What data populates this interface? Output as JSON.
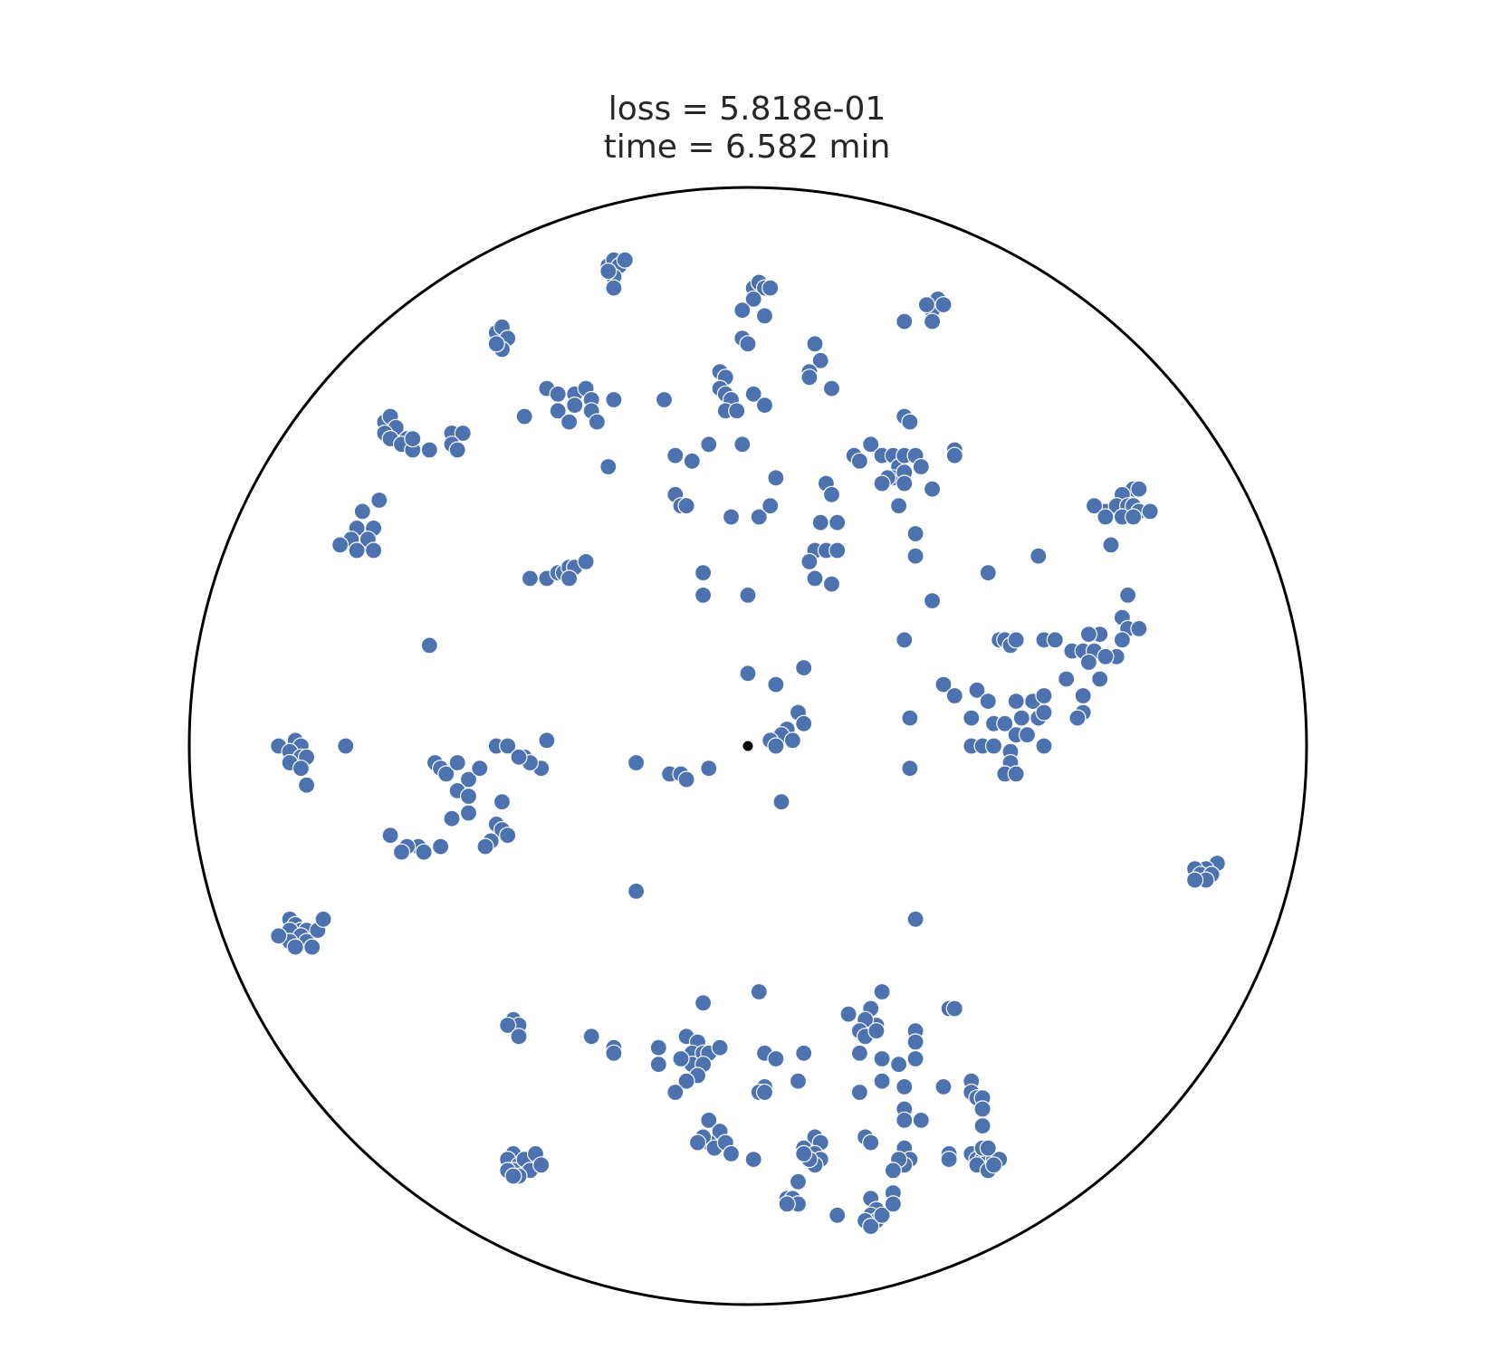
{
  "chart_data": {
    "type": "scatter",
    "title_lines": [
      "loss = 5.818e-01",
      "time = 6.582 min"
    ],
    "boundary": "unit-circle",
    "xlim": [
      -1,
      1
    ],
    "ylim": [
      -1,
      1
    ],
    "grid": false,
    "colors": {
      "points": "#4c72b0",
      "origin": "#000000",
      "boundary": "#000000",
      "point_edge": "#ffffff"
    },
    "origin_point": [
      0,
      0
    ],
    "points": [
      [
        -0.25,
        0.86
      ],
      [
        -0.24,
        0.87
      ],
      [
        -0.23,
        0.86
      ],
      [
        -0.24,
        0.84
      ],
      [
        -0.22,
        0.87
      ],
      [
        -0.25,
        0.85
      ],
      [
        -0.24,
        0.82
      ],
      [
        0.01,
        0.82
      ],
      [
        0.02,
        0.83
      ],
      [
        0.03,
        0.82
      ],
      [
        0.01,
        0.8
      ],
      [
        0.04,
        0.82
      ],
      [
        0.03,
        0.77
      ],
      [
        -0.01,
        0.78
      ],
      [
        -0.01,
        0.73
      ],
      [
        0.0,
        0.72
      ],
      [
        0.33,
        0.78
      ],
      [
        0.34,
        0.8
      ],
      [
        0.35,
        0.79
      ],
      [
        0.32,
        0.79
      ],
      [
        0.33,
        0.76
      ],
      [
        0.28,
        0.76
      ],
      [
        -0.45,
        0.74
      ],
      [
        -0.44,
        0.75
      ],
      [
        -0.43,
        0.73
      ],
      [
        -0.44,
        0.71
      ],
      [
        -0.45,
        0.72
      ],
      [
        0.12,
        0.72
      ],
      [
        0.13,
        0.69
      ],
      [
        0.11,
        0.67
      ],
      [
        0.11,
        0.66
      ],
      [
        0.15,
        0.64
      ],
      [
        -0.05,
        0.67
      ],
      [
        -0.04,
        0.66
      ],
      [
        -0.05,
        0.64
      ],
      [
        -0.04,
        0.63
      ],
      [
        -0.03,
        0.62
      ],
      [
        -0.04,
        0.6
      ],
      [
        -0.02,
        0.6
      ],
      [
        0.01,
        0.63
      ],
      [
        0.03,
        0.61
      ],
      [
        -0.15,
        0.62
      ],
      [
        -0.36,
        0.64
      ],
      [
        -0.34,
        0.63
      ],
      [
        -0.31,
        0.63
      ],
      [
        -0.29,
        0.64
      ],
      [
        -0.28,
        0.62
      ],
      [
        -0.31,
        0.61
      ],
      [
        -0.28,
        0.6
      ],
      [
        -0.34,
        0.6
      ],
      [
        -0.32,
        0.58
      ],
      [
        -0.27,
        0.58
      ],
      [
        -0.24,
        0.62
      ],
      [
        -0.4,
        0.59
      ],
      [
        -0.65,
        0.58
      ],
      [
        -0.64,
        0.59
      ],
      [
        -0.63,
        0.57
      ],
      [
        -0.65,
        0.56
      ],
      [
        -0.64,
        0.55
      ],
      [
        -0.61,
        0.55
      ],
      [
        -0.62,
        0.54
      ],
      [
        -0.6,
        0.53
      ],
      [
        -0.6,
        0.55
      ],
      [
        -0.57,
        0.53
      ],
      [
        -0.53,
        0.56
      ],
      [
        -0.51,
        0.56
      ],
      [
        -0.53,
        0.54
      ],
      [
        -0.52,
        0.53
      ],
      [
        0.28,
        0.59
      ],
      [
        0.29,
        0.58
      ],
      [
        0.22,
        0.54
      ],
      [
        0.24,
        0.52
      ],
      [
        0.26,
        0.52
      ],
      [
        0.27,
        0.5
      ],
      [
        0.28,
        0.52
      ],
      [
        0.3,
        0.52
      ],
      [
        0.31,
        0.5
      ],
      [
        0.26,
        0.48
      ],
      [
        0.28,
        0.49
      ],
      [
        0.25,
        0.48
      ],
      [
        0.24,
        0.47
      ],
      [
        0.28,
        0.47
      ],
      [
        0.33,
        0.46
      ],
      [
        0.19,
        0.52
      ],
      [
        0.2,
        0.51
      ],
      [
        0.37,
        0.53
      ],
      [
        0.37,
        0.52
      ],
      [
        0.14,
        0.47
      ],
      [
        0.15,
        0.45
      ],
      [
        0.27,
        0.43
      ],
      [
        0.3,
        0.38
      ],
      [
        -0.13,
        0.52
      ],
      [
        -0.1,
        0.51
      ],
      [
        -0.07,
        0.54
      ],
      [
        -0.01,
        0.54
      ],
      [
        0.05,
        0.48
      ],
      [
        -0.13,
        0.45
      ],
      [
        -0.12,
        0.43
      ],
      [
        -0.11,
        0.43
      ],
      [
        -0.03,
        0.41
      ],
      [
        0.02,
        0.41
      ],
      [
        0.04,
        0.43
      ],
      [
        -0.25,
        0.5
      ],
      [
        0.13,
        0.4
      ],
      [
        0.16,
        0.4
      ],
      [
        0.12,
        0.35
      ],
      [
        0.14,
        0.35
      ],
      [
        0.16,
        0.35
      ],
      [
        0.11,
        0.33
      ],
      [
        0.3,
        0.34
      ],
      [
        0.12,
        0.3
      ],
      [
        0.15,
        0.29
      ],
      [
        0.33,
        0.26
      ],
      [
        0.69,
        0.46
      ],
      [
        0.7,
        0.46
      ],
      [
        0.67,
        0.45
      ],
      [
        0.64,
        0.42
      ],
      [
        0.66,
        0.43
      ],
      [
        0.68,
        0.43
      ],
      [
        0.69,
        0.43
      ],
      [
        0.7,
        0.42
      ],
      [
        0.72,
        0.42
      ],
      [
        0.62,
        0.43
      ],
      [
        0.64,
        0.41
      ],
      [
        0.67,
        0.41
      ],
      [
        0.69,
        0.41
      ],
      [
        0.65,
        0.36
      ],
      [
        -0.69,
        0.42
      ],
      [
        -0.66,
        0.44
      ],
      [
        -0.7,
        0.39
      ],
      [
        -0.67,
        0.39
      ],
      [
        -0.71,
        0.37
      ],
      [
        -0.68,
        0.37
      ],
      [
        -0.73,
        0.36
      ],
      [
        -0.7,
        0.35
      ],
      [
        -0.67,
        0.35
      ],
      [
        -0.39,
        0.3
      ],
      [
        -0.36,
        0.3
      ],
      [
        -0.34,
        0.31
      ],
      [
        -0.33,
        0.31
      ],
      [
        -0.32,
        0.32
      ],
      [
        -0.31,
        0.32
      ],
      [
        -0.32,
        0.3
      ],
      [
        -0.29,
        0.33
      ],
      [
        -0.08,
        0.31
      ],
      [
        -0.08,
        0.27
      ],
      [
        0.0,
        0.27
      ],
      [
        0.43,
        0.31
      ],
      [
        0.52,
        0.34
      ],
      [
        0.68,
        0.27
      ],
      [
        0.67,
        0.23
      ],
      [
        0.68,
        0.21
      ],
      [
        0.63,
        0.2
      ],
      [
        0.61,
        0.2
      ],
      [
        0.58,
        0.17
      ],
      [
        0.6,
        0.17
      ],
      [
        0.62,
        0.17
      ],
      [
        0.66,
        0.16
      ],
      [
        0.67,
        0.19
      ],
      [
        0.7,
        0.21
      ],
      [
        0.61,
        0.15
      ],
      [
        0.64,
        0.16
      ],
      [
        0.57,
        0.12
      ],
      [
        0.6,
        0.09
      ],
      [
        0.63,
        0.12
      ],
      [
        0.6,
        0.06
      ],
      [
        0.59,
        0.05
      ],
      [
        0.45,
        0.19
      ],
      [
        0.46,
        0.19
      ],
      [
        0.47,
        0.18
      ],
      [
        0.48,
        0.19
      ],
      [
        0.53,
        0.19
      ],
      [
        0.55,
        0.19
      ],
      [
        0.28,
        0.19
      ],
      [
        -0.57,
        0.18
      ],
      [
        0.35,
        0.11
      ],
      [
        0.37,
        0.09
      ],
      [
        0.41,
        0.1
      ],
      [
        0.43,
        0.08
      ],
      [
        0.48,
        0.08
      ],
      [
        0.51,
        0.08
      ],
      [
        0.52,
        0.05
      ],
      [
        0.53,
        0.06
      ],
      [
        0.49,
        0.05
      ],
      [
        0.4,
        0.05
      ],
      [
        0.44,
        0.04
      ],
      [
        0.46,
        0.04
      ],
      [
        0.48,
        0.02
      ],
      [
        0.5,
        0.02
      ],
      [
        0.4,
        0.0
      ],
      [
        0.42,
        0.0
      ],
      [
        0.44,
        0.0
      ],
      [
        0.47,
        -0.01
      ],
      [
        0.47,
        -0.03
      ],
      [
        0.46,
        -0.05
      ],
      [
        0.48,
        -0.05
      ],
      [
        0.53,
        0.09
      ],
      [
        0.53,
        0.0
      ],
      [
        0.0,
        0.13
      ],
      [
        0.05,
        0.11
      ],
      [
        0.1,
        0.14
      ],
      [
        0.29,
        0.05
      ],
      [
        0.29,
        -0.04
      ],
      [
        0.09,
        0.06
      ],
      [
        0.1,
        0.04
      ],
      [
        0.07,
        0.03
      ],
      [
        0.06,
        0.02
      ],
      [
        0.08,
        0.01
      ],
      [
        0.04,
        0.01
      ],
      [
        0.05,
        0.0
      ],
      [
        -0.36,
        0.01
      ],
      [
        -0.45,
        0.0
      ],
      [
        -0.43,
        0.0
      ],
      [
        -0.4,
        -0.02
      ],
      [
        -0.37,
        -0.04
      ],
      [
        -0.39,
        -0.03
      ],
      [
        -0.41,
        -0.02
      ],
      [
        -0.84,
        0.0
      ],
      [
        -0.81,
        0.01
      ],
      [
        -0.8,
        0.0
      ],
      [
        -0.82,
        -0.01
      ],
      [
        -0.8,
        -0.02
      ],
      [
        -0.82,
        -0.03
      ],
      [
        -0.79,
        -0.02
      ],
      [
        -0.8,
        -0.04
      ],
      [
        -0.79,
        -0.07
      ],
      [
        -0.72,
        0.0
      ],
      [
        -0.2,
        -0.03
      ],
      [
        -0.14,
        -0.05
      ],
      [
        -0.12,
        -0.05
      ],
      [
        -0.11,
        -0.06
      ],
      [
        -0.07,
        -0.04
      ],
      [
        0.06,
        -0.1
      ],
      [
        -0.56,
        -0.03
      ],
      [
        -0.55,
        -0.04
      ],
      [
        -0.54,
        -0.05
      ],
      [
        -0.52,
        -0.03
      ],
      [
        -0.5,
        -0.06
      ],
      [
        -0.48,
        -0.04
      ],
      [
        -0.52,
        -0.08
      ],
      [
        -0.5,
        -0.09
      ],
      [
        -0.5,
        -0.12
      ],
      [
        -0.53,
        -0.13
      ],
      [
        -0.44,
        -0.1
      ],
      [
        -0.45,
        -0.14
      ],
      [
        -0.44,
        -0.15
      ],
      [
        -0.43,
        -0.16
      ],
      [
        -0.46,
        -0.17
      ],
      [
        -0.47,
        -0.18
      ],
      [
        -0.55,
        -0.18
      ],
      [
        -0.59,
        -0.18
      ],
      [
        -0.58,
        -0.19
      ],
      [
        -0.61,
        -0.18
      ],
      [
        -0.64,
        -0.16
      ],
      [
        -0.62,
        -0.19
      ],
      [
        0.84,
        -0.21
      ],
      [
        0.82,
        -0.22
      ],
      [
        0.8,
        -0.22
      ],
      [
        0.81,
        -0.23
      ],
      [
        0.83,
        -0.23
      ],
      [
        0.82,
        -0.24
      ],
      [
        0.8,
        -0.24
      ],
      [
        -0.2,
        -0.26
      ],
      [
        0.3,
        -0.31
      ],
      [
        -0.82,
        -0.31
      ],
      [
        -0.81,
        -0.32
      ],
      [
        -0.8,
        -0.33
      ],
      [
        -0.79,
        -0.33
      ],
      [
        -0.82,
        -0.33
      ],
      [
        -0.8,
        -0.34
      ],
      [
        -0.79,
        -0.35
      ],
      [
        -0.82,
        -0.35
      ],
      [
        -0.81,
        -0.36
      ],
      [
        -0.84,
        -0.34
      ],
      [
        -0.77,
        -0.33
      ],
      [
        -0.76,
        -0.31
      ],
      [
        -0.78,
        -0.36
      ],
      [
        0.02,
        -0.44
      ],
      [
        0.24,
        -0.44
      ],
      [
        0.22,
        -0.47
      ],
      [
        0.23,
        -0.5
      ],
      [
        0.21,
        -0.49
      ],
      [
        0.2,
        -0.51
      ],
      [
        0.18,
        -0.48
      ],
      [
        0.21,
        -0.52
      ],
      [
        0.23,
        -0.51
      ],
      [
        0.3,
        -0.51
      ],
      [
        0.36,
        -0.47
      ],
      [
        0.37,
        -0.47
      ],
      [
        -0.08,
        -0.46
      ],
      [
        -0.11,
        -0.52
      ],
      [
        -0.09,
        -0.53
      ],
      [
        -0.1,
        -0.55
      ],
      [
        -0.08,
        -0.55
      ],
      [
        -0.07,
        -0.55
      ],
      [
        -0.1,
        -0.57
      ],
      [
        -0.08,
        -0.57
      ],
      [
        -0.05,
        -0.54
      ],
      [
        -0.09,
        -0.59
      ],
      [
        -0.11,
        -0.6
      ],
      [
        -0.12,
        -0.56
      ],
      [
        -0.16,
        -0.54
      ],
      [
        -0.16,
        -0.57
      ],
      [
        -0.13,
        -0.62
      ],
      [
        -0.42,
        -0.49
      ],
      [
        -0.41,
        -0.5
      ],
      [
        -0.43,
        -0.5
      ],
      [
        -0.41,
        -0.52
      ],
      [
        -0.28,
        -0.52
      ],
      [
        -0.24,
        -0.54
      ],
      [
        -0.24,
        -0.55
      ],
      [
        0.03,
        -0.55
      ],
      [
        0.05,
        -0.56
      ],
      [
        0.1,
        -0.55
      ],
      [
        0.2,
        -0.55
      ],
      [
        0.24,
        -0.56
      ],
      [
        0.27,
        -0.57
      ],
      [
        0.3,
        -0.53
      ],
      [
        0.3,
        -0.56
      ],
      [
        0.24,
        -0.6
      ],
      [
        0.28,
        -0.61
      ],
      [
        0.2,
        -0.62
      ],
      [
        0.09,
        -0.6
      ],
      [
        0.03,
        -0.61
      ],
      [
        0.02,
        -0.62
      ],
      [
        0.03,
        -0.62
      ],
      [
        0.35,
        -0.61
      ],
      [
        0.4,
        -0.6
      ],
      [
        0.4,
        -0.62
      ],
      [
        0.41,
        -0.63
      ],
      [
        0.42,
        -0.63
      ],
      [
        0.42,
        -0.65
      ],
      [
        0.28,
        -0.65
      ],
      [
        0.28,
        -0.67
      ],
      [
        0.31,
        -0.67
      ],
      [
        0.42,
        -0.68
      ],
      [
        -0.07,
        -0.67
      ],
      [
        -0.05,
        -0.69
      ],
      [
        -0.07,
        -0.71
      ],
      [
        -0.08,
        -0.7
      ],
      [
        -0.06,
        -0.72
      ],
      [
        -0.04,
        -0.71
      ],
      [
        -0.09,
        -0.71
      ],
      [
        -0.03,
        -0.73
      ],
      [
        0.01,
        -0.74
      ],
      [
        0.12,
        -0.7
      ],
      [
        0.13,
        -0.71
      ],
      [
        0.1,
        -0.72
      ],
      [
        0.12,
        -0.73
      ],
      [
        0.13,
        -0.74
      ],
      [
        0.12,
        -0.75
      ],
      [
        0.11,
        -0.74
      ],
      [
        0.1,
        -0.73
      ],
      [
        0.21,
        -0.7
      ],
      [
        0.22,
        -0.71
      ],
      [
        0.28,
        -0.72
      ],
      [
        0.29,
        -0.74
      ],
      [
        0.28,
        -0.75
      ],
      [
        0.27,
        -0.74
      ],
      [
        0.26,
        -0.76
      ],
      [
        0.36,
        -0.73
      ],
      [
        0.36,
        -0.74
      ],
      [
        0.4,
        -0.73
      ],
      [
        0.41,
        -0.74
      ],
      [
        0.42,
        -0.74
      ],
      [
        0.43,
        -0.73
      ],
      [
        0.44,
        -0.74
      ],
      [
        0.45,
        -0.74
      ],
      [
        0.41,
        -0.75
      ],
      [
        0.43,
        -0.76
      ],
      [
        0.44,
        -0.75
      ],
      [
        0.42,
        -0.72
      ],
      [
        0.43,
        -0.72
      ],
      [
        -0.42,
        -0.73
      ],
      [
        -0.43,
        -0.74
      ],
      [
        -0.41,
        -0.75
      ],
      [
        -0.42,
        -0.76
      ],
      [
        -0.4,
        -0.74
      ],
      [
        -0.39,
        -0.76
      ],
      [
        -0.41,
        -0.77
      ],
      [
        -0.43,
        -0.76
      ],
      [
        -0.42,
        -0.77
      ],
      [
        -0.38,
        -0.73
      ],
      [
        -0.37,
        -0.75
      ],
      [
        0.09,
        -0.78
      ],
      [
        0.07,
        -0.81
      ],
      [
        0.08,
        -0.81
      ],
      [
        0.09,
        -0.82
      ],
      [
        0.07,
        -0.82
      ],
      [
        0.22,
        -0.81
      ],
      [
        0.23,
        -0.83
      ],
      [
        0.22,
        -0.84
      ],
      [
        0.23,
        -0.85
      ],
      [
        0.21,
        -0.85
      ],
      [
        0.22,
        -0.86
      ],
      [
        0.24,
        -0.84
      ],
      [
        0.26,
        -0.8
      ],
      [
        0.26,
        -0.82
      ],
      [
        0.16,
        -0.84
      ]
    ]
  }
}
